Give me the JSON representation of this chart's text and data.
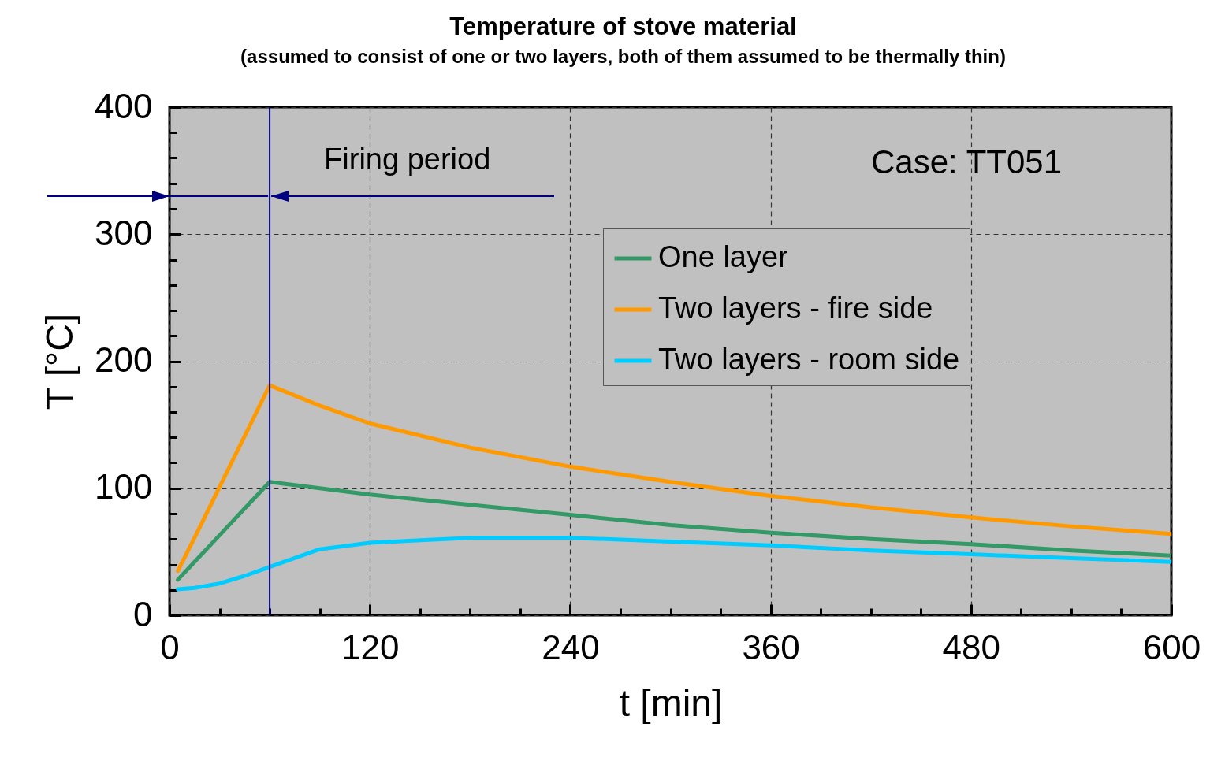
{
  "chart_data": {
    "type": "line",
    "title": "Temperature of stove material",
    "subtitle": "(assumed to consist of one or two layers, both of them assumed to be thermally thin)",
    "xlabel": "t  [min]",
    "ylabel": "T  [°C]",
    "x": [
      5,
      15,
      30,
      45,
      60,
      90,
      120,
      180,
      240,
      300,
      360,
      420,
      480,
      540,
      600
    ],
    "series": [
      {
        "name": "One layer",
        "color": "#339966",
        "values": [
          28,
          42,
          63,
          84,
          105,
          100,
          95,
          87,
          79,
          71,
          65,
          60,
          56,
          51,
          47
        ]
      },
      {
        "name": "Two layers - fire side",
        "color": "#ff9900",
        "values": [
          35,
          61,
          101,
          141,
          181,
          165,
          151,
          132,
          117,
          105,
          94,
          85,
          77,
          70,
          64
        ]
      },
      {
        "name": "Two layers - room side",
        "color": "#00ccff",
        "values": [
          20.5,
          21.5,
          25,
          31,
          38,
          52,
          57,
          61,
          61,
          58,
          55,
          51,
          48,
          45,
          42
        ]
      }
    ],
    "xlim": [
      0,
      600
    ],
    "xticks": [
      0,
      {
        "value": 30,
        "label": null
      },
      {
        "value": 60,
        "label": null
      },
      {
        "value": 90,
        "label": null
      },
      120,
      {
        "value": 150,
        "label": null
      },
      {
        "value": 180,
        "label": null
      },
      {
        "value": 210,
        "label": null
      },
      240,
      {
        "value": 270,
        "label": null
      },
      {
        "value": 300,
        "label": null
      },
      {
        "value": 330,
        "label": null
      },
      360,
      {
        "value": 390,
        "label": null
      },
      {
        "value": 420,
        "label": null
      },
      {
        "value": 450,
        "label": null
      },
      480,
      {
        "value": 510,
        "label": null
      },
      {
        "value": 540,
        "label": null
      },
      {
        "value": 570,
        "label": null
      },
      600
    ],
    "ylim": [
      0,
      400
    ],
    "yticks": [
      0,
      {
        "value": 20,
        "label": null
      },
      {
        "value": 40,
        "label": null
      },
      {
        "value": 60,
        "label": null
      },
      {
        "value": 80,
        "label": null
      },
      100,
      {
        "value": 120,
        "label": null
      },
      {
        "value": 140,
        "label": null
      },
      {
        "value": 160,
        "label": null
      },
      {
        "value": 180,
        "label": null
      },
      200,
      {
        "value": 220,
        "label": null
      },
      {
        "value": 240,
        "label": null
      },
      {
        "value": 260,
        "label": null
      },
      {
        "value": 280,
        "label": null
      },
      300,
      {
        "value": 320,
        "label": null
      },
      {
        "value": 340,
        "label": null
      },
      {
        "value": 360,
        "label": null
      },
      {
        "value": 380,
        "label": null
      },
      400
    ],
    "grid": true,
    "legend": "top right",
    "line_style": "solid",
    "marker": "none",
    "ref_lines": [
      {
        "axis": "x",
        "value": 60,
        "color": "#000080"
      }
    ],
    "annotations": [
      {
        "text": "Firing period",
        "x": 60,
        "y": 330
      },
      "Case:  TT051"
    ]
  }
}
